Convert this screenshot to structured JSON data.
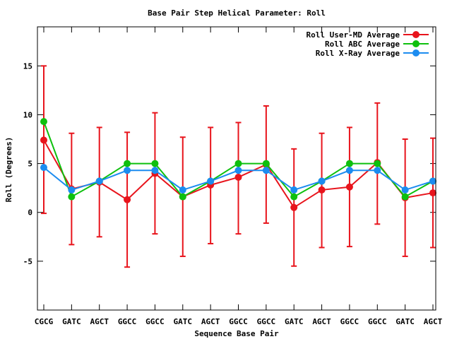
{
  "chart_data": {
    "type": "line",
    "title": "Base Pair Step Helical Parameter: Roll",
    "xlabel": "Sequence Base Pair",
    "ylabel": "Roll (Degrees)",
    "categories": [
      "CGCG",
      "GATC",
      "AGCT",
      "GGCC",
      "GGCC",
      "GATC",
      "AGCT",
      "GGCC",
      "GGCC",
      "GATC",
      "AGCT",
      "GGCC",
      "GGCC",
      "GATC",
      "AGCT"
    ],
    "ylim": [
      -10,
      19
    ],
    "yticks": [
      -5,
      0,
      5,
      10,
      15
    ],
    "grid": false,
    "legend_position": "top-right",
    "series": [
      {
        "name": "Roll User-MD Average",
        "color": "#e8141c",
        "values": [
          7.4,
          2.4,
          3.1,
          1.3,
          4.0,
          1.6,
          2.8,
          3.6,
          4.9,
          0.5,
          2.3,
          2.6,
          5.1,
          1.5,
          2.0
        ],
        "error_low": [
          -0.1,
          -3.3,
          -2.5,
          -5.6,
          -2.2,
          -4.5,
          -3.2,
          -2.2,
          -1.1,
          -5.5,
          -3.6,
          -3.5,
          -1.2,
          -4.5,
          -3.6
        ],
        "error_high": [
          15.0,
          8.1,
          8.7,
          8.2,
          10.2,
          7.7,
          8.7,
          9.2,
          10.9,
          6.5,
          8.1,
          8.7,
          11.2,
          7.5,
          7.6
        ]
      },
      {
        "name": "Roll ABC Average",
        "color": "#0ec00e",
        "values": [
          9.3,
          1.6,
          3.2,
          5.0,
          5.0,
          1.6,
          3.2,
          5.0,
          5.0,
          1.6,
          3.2,
          5.0,
          5.0,
          1.6,
          3.2
        ]
      },
      {
        "name": "Roll X-Ray Average",
        "color": "#1c8cf0",
        "values": [
          4.6,
          2.3,
          3.2,
          4.3,
          4.3,
          2.3,
          3.2,
          4.3,
          4.3,
          2.3,
          3.2,
          4.3,
          4.3,
          2.3,
          3.2
        ]
      }
    ]
  }
}
